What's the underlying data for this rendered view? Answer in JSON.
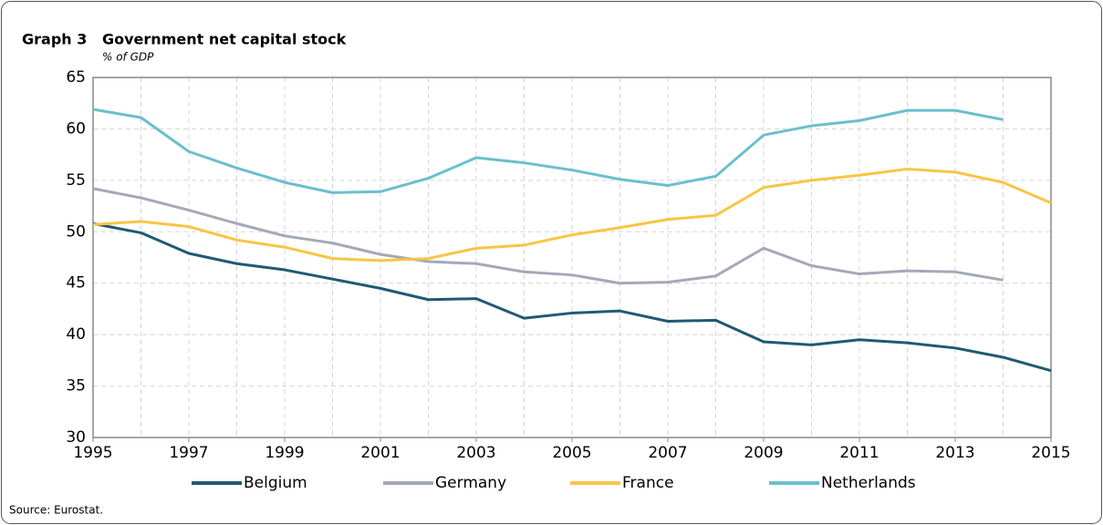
{
  "chart_data": {
    "type": "line",
    "label": "Graph 3",
    "title": "Government net capital stock",
    "subtitle": "% of GDP",
    "source": "Source: Eurostat.",
    "x": [
      1995,
      1996,
      1997,
      1998,
      1999,
      2000,
      2001,
      2002,
      2003,
      2004,
      2005,
      2006,
      2007,
      2008,
      2009,
      2010,
      2011,
      2012,
      2013,
      2014,
      2015
    ],
    "series": [
      {
        "name": "Belgium",
        "color": "#1f5a73",
        "values": [
          50.8,
          49.9,
          47.9,
          46.9,
          46.3,
          45.4,
          44.5,
          43.4,
          43.5,
          41.6,
          42.1,
          42.3,
          41.3,
          41.4,
          39.3,
          39.0,
          39.5,
          39.2,
          38.7,
          37.8,
          36.5
        ]
      },
      {
        "name": "Germany",
        "color": "#a3a9b5",
        "values": [
          54.2,
          53.3,
          52.1,
          50.8,
          49.6,
          48.9,
          47.8,
          47.1,
          46.9,
          46.1,
          45.8,
          45.0,
          45.1,
          45.7,
          48.4,
          46.7,
          45.9,
          46.2,
          46.1,
          45.3,
          null
        ]
      },
      {
        "name": "France",
        "color": "#f8c545",
        "values": [
          50.7,
          51.0,
          50.5,
          49.2,
          48.5,
          47.4,
          47.2,
          47.4,
          48.4,
          48.7,
          49.7,
          50.4,
          51.2,
          51.6,
          54.3,
          55.0,
          55.5,
          56.1,
          55.8,
          54.8,
          52.8
        ]
      },
      {
        "name": "Netherlands",
        "color": "#6bbfcc",
        "values": [
          61.9,
          61.1,
          57.8,
          56.2,
          54.8,
          53.8,
          53.9,
          55.2,
          57.2,
          56.7,
          56.0,
          55.1,
          54.5,
          55.4,
          59.4,
          60.3,
          60.8,
          61.8,
          61.8,
          60.9,
          null
        ]
      }
    ],
    "xlim": [
      1995,
      2015
    ],
    "xticks": [
      1995,
      1997,
      1999,
      2001,
      2003,
      2005,
      2007,
      2009,
      2011,
      2013,
      2015
    ],
    "ylim": [
      30,
      65
    ],
    "yticks": [
      30,
      35,
      40,
      45,
      50,
      55,
      60,
      65
    ],
    "grid": true,
    "legend": "bottom"
  }
}
